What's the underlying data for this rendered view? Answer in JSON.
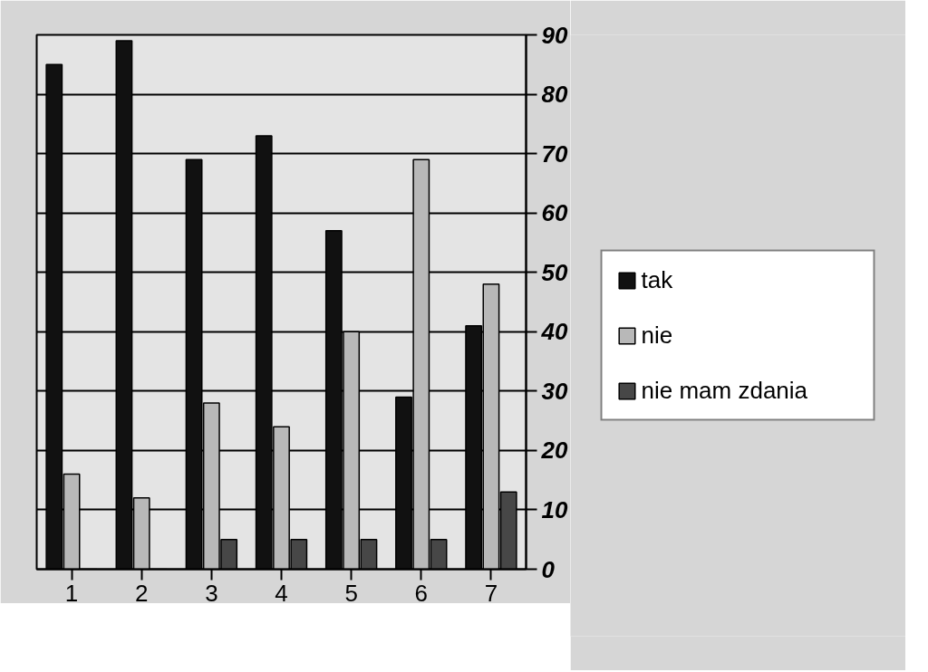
{
  "chart_data": {
    "type": "bar",
    "categories": [
      "1",
      "2",
      "3",
      "4",
      "5",
      "6",
      "7"
    ],
    "series": [
      {
        "name": "tak",
        "color": "#111111",
        "values": [
          85,
          89,
          69,
          73,
          57,
          29,
          41
        ]
      },
      {
        "name": "nie",
        "color": "#b8b8b8",
        "values": [
          16,
          12,
          28,
          24,
          40,
          69,
          48
        ]
      },
      {
        "name": "nie mam zdania",
        "color": "#474747",
        "values": [
          0,
          0,
          5,
          5,
          5,
          5,
          13
        ]
      }
    ],
    "ylim": [
      0,
      90
    ],
    "yticks": [
      0,
      10,
      20,
      30,
      40,
      50,
      60,
      70,
      80,
      90
    ],
    "grid": "y",
    "legend": "right"
  }
}
